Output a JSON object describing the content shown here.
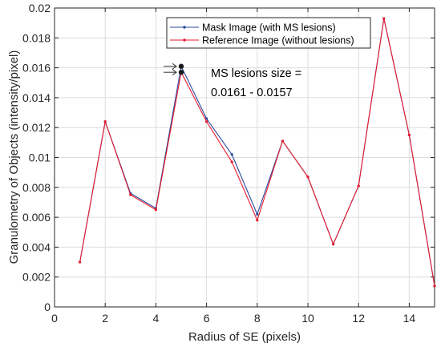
{
  "chart_data": {
    "type": "line",
    "xlabel": "Radius of SE (pixels)",
    "ylabel": "Granulometry of Objects (intensity/pixel)",
    "xlim": [
      0,
      15
    ],
    "ylim": [
      0,
      0.02
    ],
    "xticks": [
      0,
      2,
      4,
      6,
      8,
      10,
      12,
      14
    ],
    "xtick_labels": [
      "0",
      "2",
      "4",
      "6",
      "8",
      "10",
      "12",
      "14"
    ],
    "yticks": [
      0,
      0.002,
      0.004,
      0.006,
      0.008,
      0.01,
      0.012,
      0.014,
      0.016,
      0.018,
      0.02
    ],
    "ytick_labels": [
      "0",
      "0.002",
      "0.004",
      "0.006",
      "0.008",
      "0.01",
      "0.012",
      "0.014",
      "0.016",
      "0.018",
      "0.02"
    ],
    "grid": true,
    "legend_position": "top-center",
    "series": [
      {
        "name": "Mask Image (with MS lesions)",
        "color": "#2b4a9e",
        "x": [
          1,
          2,
          3,
          4,
          5,
          6,
          7,
          8,
          9,
          10,
          11,
          12,
          13,
          14,
          15
        ],
        "values": [
          0.003,
          0.0124,
          0.0076,
          0.0066,
          0.0161,
          0.0126,
          0.0102,
          0.0062,
          0.0111,
          0.0087,
          0.0042,
          0.0081,
          0.0193,
          0.0115,
          0.0014
        ]
      },
      {
        "name": "Reference Image (without lesions)",
        "color": "#e8192c",
        "x": [
          1,
          2,
          3,
          4,
          5,
          6,
          7,
          8,
          9,
          10,
          11,
          12,
          13,
          14,
          15
        ],
        "values": [
          0.003,
          0.0124,
          0.0075,
          0.0065,
          0.0157,
          0.0124,
          0.0097,
          0.0058,
          0.0111,
          0.0087,
          0.0042,
          0.0081,
          0.0193,
          0.0115,
          0.0014
        ]
      }
    ],
    "annotation": {
      "line1": "MS lesions size =",
      "line2": "0.0161 - 0.0157",
      "highlight_x": 5,
      "highlight_values": [
        0.0161,
        0.0157
      ],
      "marker_color": "#1a1a1a"
    },
    "colors": {
      "axis": "#262626",
      "grid": "#dcdcdc",
      "legend_border": "#262626",
      "background": "#ffffff"
    }
  }
}
